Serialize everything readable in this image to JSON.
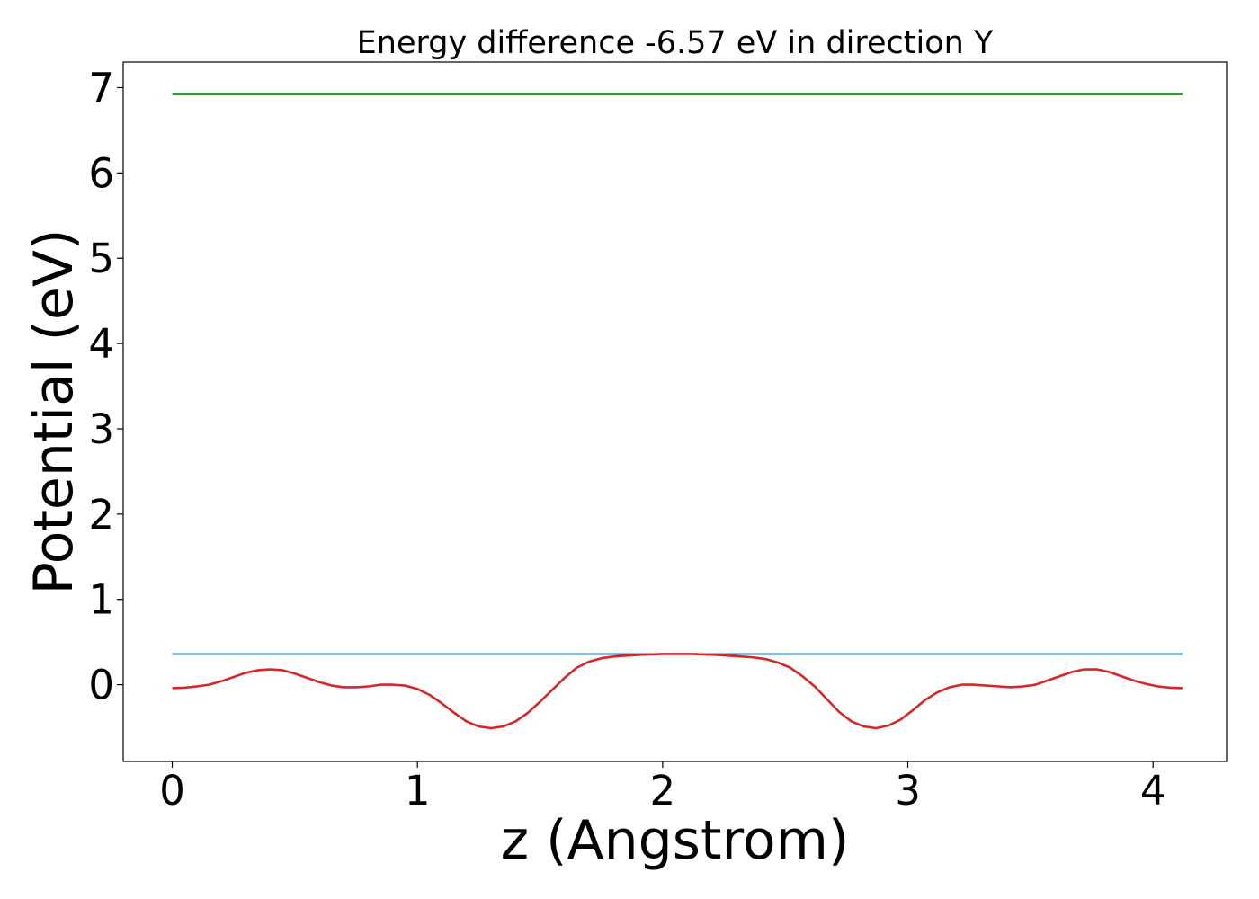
{
  "chart_data": {
    "type": "line",
    "title": "Energy difference -6.57 eV in direction Y",
    "xlabel": "z (Angstrom)",
    "ylabel": "Potential (eV)",
    "xlim": [
      -0.2,
      4.3
    ],
    "ylim": [
      -0.9,
      7.3
    ],
    "xticks": [
      0,
      1,
      2,
      3,
      4
    ],
    "yticks": [
      0,
      1,
      2,
      3,
      4,
      5,
      6,
      7
    ],
    "grid": false,
    "legend": "none",
    "series": [
      {
        "color": "#2ca02c",
        "x": [
          0,
          4.12
        ],
        "y": [
          6.92,
          6.92
        ]
      },
      {
        "color": "#1f77b4",
        "x": [
          0,
          4.12
        ],
        "y": [
          0.36,
          0.36
        ]
      },
      {
        "color": "#d62728",
        "x": [
          0,
          0.05,
          0.1,
          0.15,
          0.2,
          0.25,
          0.3,
          0.35,
          0.4,
          0.45,
          0.5,
          0.55,
          0.6,
          0.65,
          0.7,
          0.75,
          0.8,
          0.85,
          0.9,
          0.95,
          1.0,
          1.05,
          1.1,
          1.15,
          1.2,
          1.25,
          1.3,
          1.35,
          1.4,
          1.45,
          1.5,
          1.55,
          1.6,
          1.65,
          1.7,
          1.75,
          1.8,
          1.85,
          1.9,
          1.95,
          2.0,
          2.06,
          2.12,
          2.17,
          2.22,
          2.27,
          2.32,
          2.37,
          2.42,
          2.47,
          2.52,
          2.57,
          2.62,
          2.67,
          2.72,
          2.77,
          2.82,
          2.87,
          2.92,
          2.97,
          3.02,
          3.07,
          3.12,
          3.17,
          3.22,
          3.27,
          3.32,
          3.37,
          3.42,
          3.47,
          3.52,
          3.57,
          3.62,
          3.67,
          3.72,
          3.77,
          3.82,
          3.87,
          3.92,
          3.97,
          4.02,
          4.07,
          4.12
        ],
        "y": [
          -0.04,
          -0.035,
          -0.02,
          0.0,
          0.04,
          0.09,
          0.14,
          0.17,
          0.18,
          0.17,
          0.13,
          0.08,
          0.03,
          -0.01,
          -0.03,
          -0.03,
          -0.02,
          0.0,
          0.0,
          -0.01,
          -0.05,
          -0.12,
          -0.22,
          -0.33,
          -0.43,
          -0.49,
          -0.51,
          -0.49,
          -0.43,
          -0.33,
          -0.2,
          -0.06,
          0.08,
          0.2,
          0.27,
          0.31,
          0.33,
          0.34,
          0.35,
          0.355,
          0.36,
          0.36,
          0.36,
          0.355,
          0.35,
          0.34,
          0.33,
          0.32,
          0.3,
          0.26,
          0.2,
          0.1,
          -0.02,
          -0.17,
          -0.32,
          -0.43,
          -0.49,
          -0.51,
          -0.48,
          -0.41,
          -0.3,
          -0.18,
          -0.09,
          -0.03,
          0.0,
          0.0,
          -0.01,
          -0.02,
          -0.03,
          -0.02,
          0.0,
          0.05,
          0.1,
          0.15,
          0.18,
          0.18,
          0.15,
          0.1,
          0.05,
          0.01,
          -0.02,
          -0.035,
          -0.04
        ]
      }
    ]
  }
}
